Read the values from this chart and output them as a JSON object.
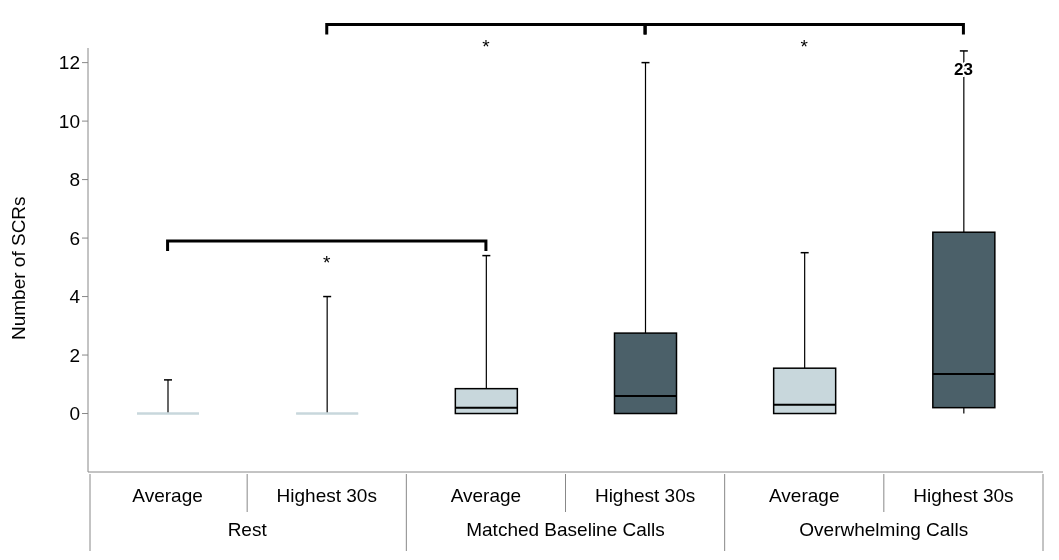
{
  "chart_data": {
    "type": "box",
    "ylabel": "Number of SCRs",
    "categories": [
      "Average",
      "Highest 30s",
      "Average",
      "Highest 30s",
      "Average",
      "Highest 30s"
    ],
    "boxes": [
      {
        "low": 0,
        "q1": 0,
        "median": 0,
        "q3": 0,
        "high": 1.15
      },
      {
        "low": 0,
        "q1": 0,
        "median": 0,
        "q3": 0,
        "high": 4
      },
      {
        "low": 0,
        "q1": 0,
        "median": 0.2,
        "q3": 0.85,
        "high": 5.4
      },
      {
        "low": 0,
        "q1": 0,
        "median": 0.6,
        "q3": 2.75,
        "high": 12
      },
      {
        "low": 0,
        "q1": 0,
        "median": 0.3,
        "q3": 1.55,
        "high": 5.5
      },
      {
        "low": 0,
        "q1": 0.2,
        "median": 1.35,
        "q3": 6.2,
        "high": 12.4
      }
    ],
    "colors": [
      "#c8d7dc",
      "#c8d7dc",
      "#c8d7dc",
      "#4b6069",
      "#c8d7dc",
      "#4b6069"
    ],
    "ylim": [
      -2,
      12.5
    ],
    "yticks": [
      0,
      2,
      4,
      6,
      8,
      10,
      12
    ],
    "annotations": [
      "*",
      "*",
      "*",
      "23",
      "Rest",
      "Matched Baseline Calls",
      "Overwhelming Calls"
    ]
  }
}
